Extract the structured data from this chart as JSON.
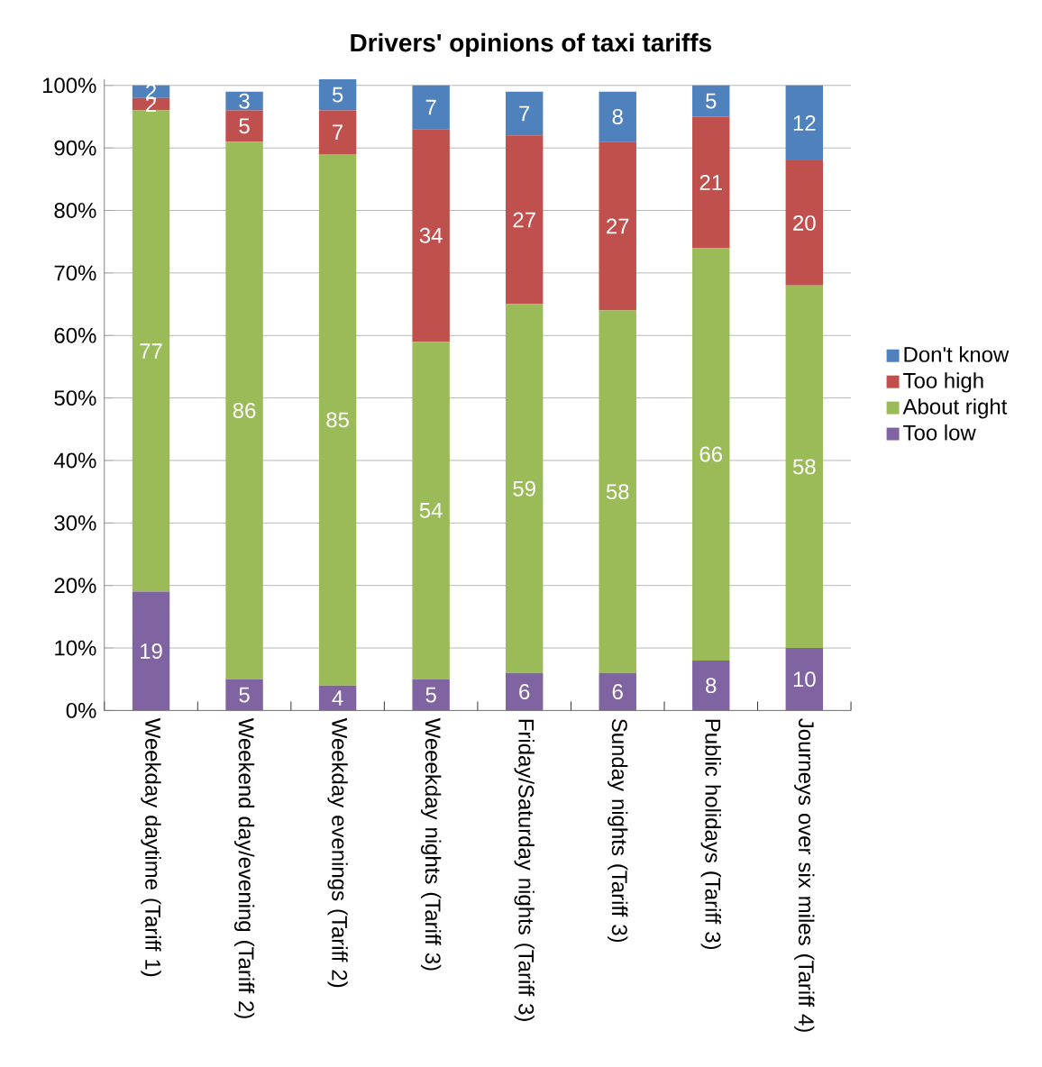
{
  "chart_data": {
    "type": "bar",
    "stacked": true,
    "title": "Drivers' opinions of taxi tariffs",
    "categories": [
      "Weekday daytime (Tariff 1)",
      "Weekend day/evening (Tariff 2)",
      "Weekday evenings (Tariff 2)",
      "Weeekday nights (Tariff 3)",
      "Friday/Saturday nights (Tariff 3)",
      "Sunday nights (Tariff 3)",
      "Public holidays (Tariff 3)",
      "Journeys over six miles (Tariff 4)"
    ],
    "series": [
      {
        "name": "Too low",
        "color": "#8064a2",
        "values": [
          19,
          5,
          4,
          5,
          6,
          6,
          8,
          10
        ]
      },
      {
        "name": "About right",
        "color": "#9bbb59",
        "values": [
          77,
          86,
          85,
          54,
          59,
          58,
          66,
          58
        ]
      },
      {
        "name": "Too high",
        "color": "#c0504d",
        "values": [
          2,
          5,
          7,
          34,
          27,
          27,
          21,
          20
        ]
      },
      {
        "name": "Don't know",
        "color": "#4f81bd",
        "values": [
          2,
          3,
          5,
          7,
          7,
          8,
          5,
          12
        ]
      }
    ],
    "ylim": [
      0,
      101
    ],
    "yticks": [
      {
        "value": 0,
        "label": "0%"
      },
      {
        "value": 10,
        "label": "10%"
      },
      {
        "value": 20,
        "label": "20%"
      },
      {
        "value": 30,
        "label": "30%"
      },
      {
        "value": 40,
        "label": "40%"
      },
      {
        "value": 50,
        "label": "50%"
      },
      {
        "value": 60,
        "label": "60%"
      },
      {
        "value": 70,
        "label": "70%"
      },
      {
        "value": 80,
        "label": "80%"
      },
      {
        "value": 90,
        "label": "90%"
      },
      {
        "value": 100,
        "label": "100%"
      }
    ],
    "grid": "y",
    "legend": "right",
    "data_labels": true
  }
}
